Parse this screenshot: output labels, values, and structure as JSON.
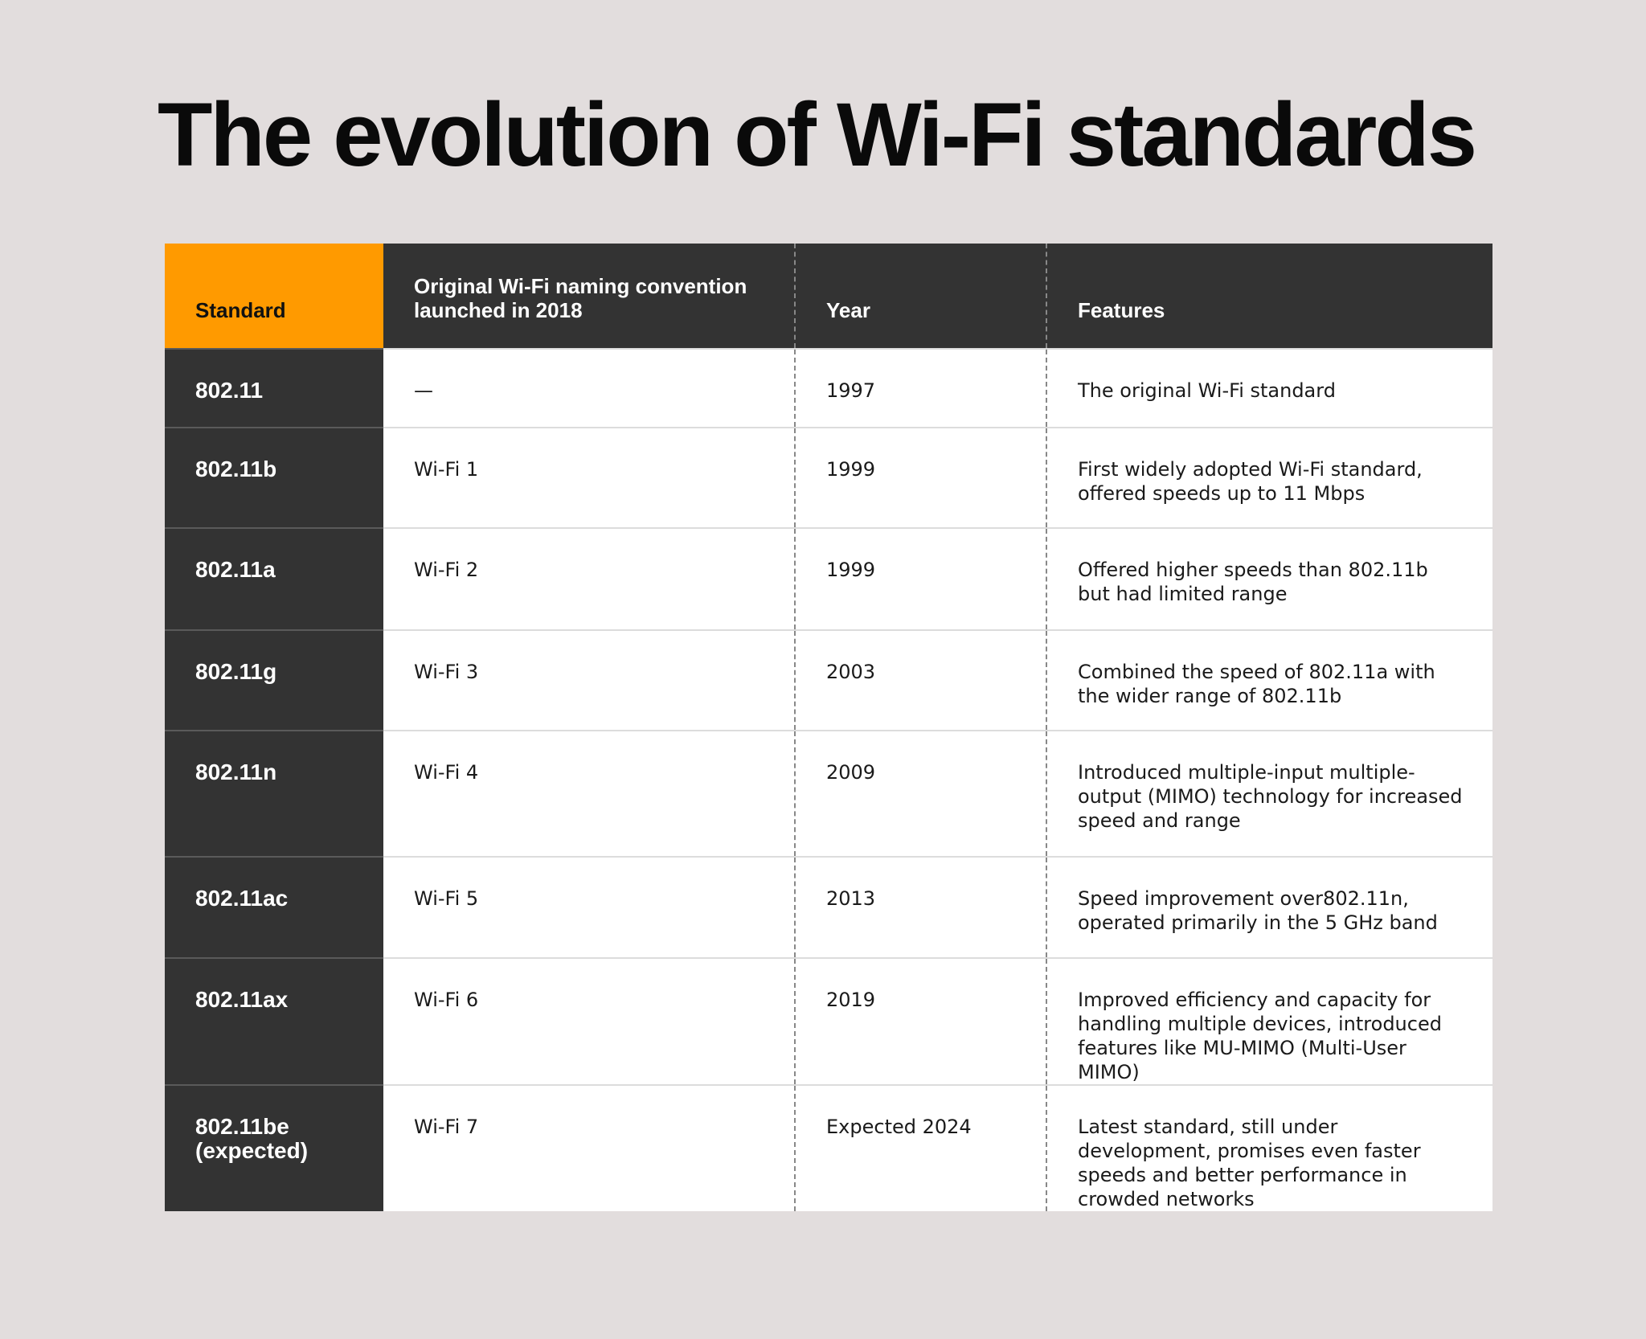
{
  "header": {
    "title": "The evolution of Wi-Fi standards"
  },
  "table": {
    "columns": [
      "Standard",
      "Original Wi-Fi naming convention launched in 2018",
      "Year",
      "Features"
    ],
    "rows": [
      [
        "802.11",
        "—",
        "1997",
        "The original Wi-Fi standard"
      ],
      [
        "802.11b",
        "Wi-Fi 1",
        "1999",
        "First widely adopted Wi-Fi standard, offered speeds up to 11 Mbps"
      ],
      [
        "802.11a",
        "Wi-Fi 2",
        "1999",
        "Offered higher speeds than 802.11b but had limited range"
      ],
      [
        "802.11g",
        "Wi-Fi 3",
        "2003",
        "Combined the speed of 802.11a with the wider range of 802.11b"
      ],
      [
        "802.11n",
        "Wi-Fi 4",
        "2009",
        "Introduced multiple-input multiple-output (MIMO) technology for increased speed and range"
      ],
      [
        "802.11ac",
        "Wi-Fi 5",
        "2013",
        "Speed improvement over802.11n, operated primarily in the 5 GHz band"
      ],
      [
        "802.11ax",
        "Wi-Fi 6",
        "2019",
        "Improved efficiency and capacity for handling multiple devices, introduced features like MU-MIMO (Multi-User MIMO)"
      ],
      [
        "802.11be (expected)",
        "Wi-Fi 7",
        "Expected 2024",
        "Latest standard, still under development, promises even faster speeds and better performance in crowded networks"
      ]
    ]
  }
}
